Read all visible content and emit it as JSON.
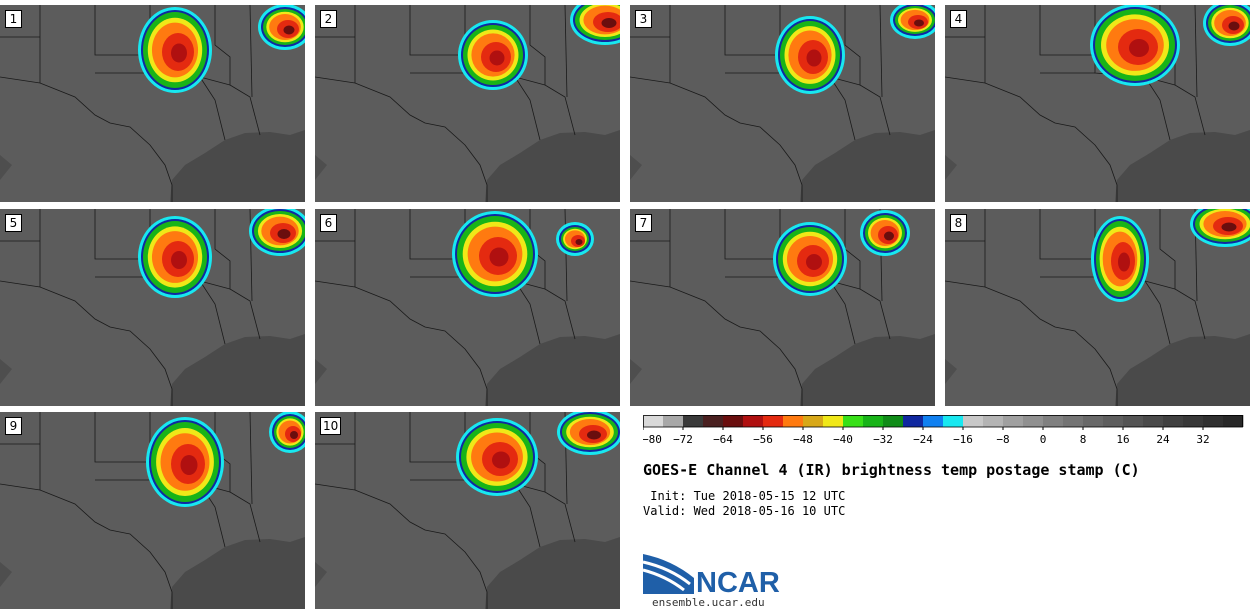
{
  "panels": [
    {
      "label": "1"
    },
    {
      "label": "2"
    },
    {
      "label": "3"
    },
    {
      "label": "4"
    },
    {
      "label": "5"
    },
    {
      "label": "6"
    },
    {
      "label": "7"
    },
    {
      "label": "8"
    },
    {
      "label": "9"
    },
    {
      "label": "10"
    }
  ],
  "colorbar": {
    "colors": [
      "#d9d9d9",
      "#a8a8a8",
      "#3a3a3a",
      "#4a2020",
      "#6a0e0e",
      "#b01010",
      "#e42a10",
      "#ff7a10",
      "#d8a818",
      "#f0e818",
      "#38e018",
      "#18b418",
      "#108c18",
      "#1028a0",
      "#1080f0",
      "#18e8f0",
      "#c8c8c8",
      "#b4b4b4",
      "#a0a0a0",
      "#909090",
      "#808080",
      "#747474",
      "#686868",
      "#5e5e5e",
      "#545454",
      "#4a4a4a",
      "#404040",
      "#383838",
      "#303030",
      "#282828"
    ],
    "ticks": [
      "−80",
      "−72",
      "−64",
      "−56",
      "−48",
      "−40",
      "−32",
      "−24",
      "−16",
      "−8",
      "0",
      "8",
      "16",
      "24",
      "32"
    ]
  },
  "title": "GOES-E Channel 4 (IR) brightness temp postage stamp (C)",
  "init_line": " Init: Tue 2018-05-15 12 UTC",
  "valid_line": "Valid: Wed 2018-05-16 10 UTC",
  "logo_text": "NCAR",
  "logo_url": "ensemble.ucar.edu"
}
